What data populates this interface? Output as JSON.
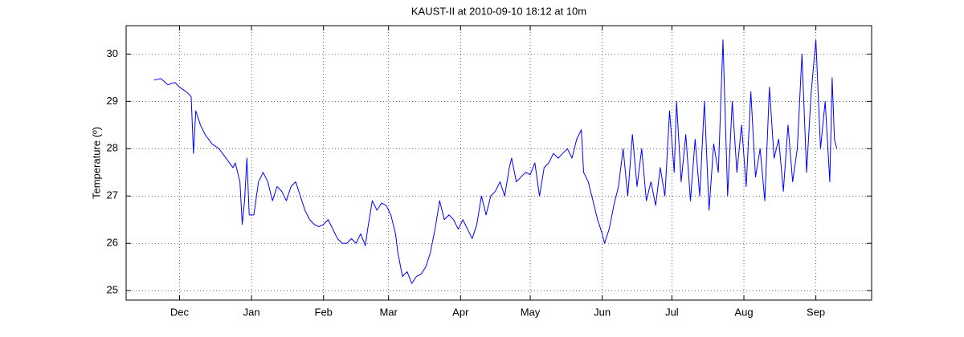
{
  "chart_data": {
    "type": "line",
    "title": "KAUST-II at 2010-09-10 18:12 at 10m",
    "ylabel": "Temperature (º)",
    "color": "#0000ff",
    "grid": true,
    "xlim": [
      -23,
      298
    ],
    "ylim": [
      24.8,
      30.6
    ],
    "yticks": [
      25,
      26,
      27,
      28,
      29,
      30
    ],
    "xticks": [
      {
        "value": 0,
        "label": "Dec"
      },
      {
        "value": 31,
        "label": "Jan"
      },
      {
        "value": 62,
        "label": "Feb"
      },
      {
        "value": 90,
        "label": "Mar"
      },
      {
        "value": 121,
        "label": "Apr"
      },
      {
        "value": 151,
        "label": "May"
      },
      {
        "value": 182,
        "label": "Jun"
      },
      {
        "value": 212,
        "label": "Jul"
      },
      {
        "value": 243,
        "label": "Aug"
      },
      {
        "value": 274,
        "label": "Sep"
      }
    ],
    "x": [
      -11,
      -8,
      -5,
      -2,
      0,
      3,
      5,
      6,
      7,
      9,
      11,
      14,
      17,
      20,
      23,
      24,
      26,
      27,
      28,
      29,
      30,
      32,
      34,
      36,
      38,
      40,
      42,
      44,
      46,
      48,
      50,
      52,
      54,
      56,
      58,
      60,
      62,
      64,
      66,
      68,
      70,
      72,
      74,
      76,
      78,
      80,
      81,
      83,
      85,
      87,
      89,
      91,
      93,
      94,
      96,
      98,
      100,
      102,
      104,
      106,
      108,
      110,
      112,
      114,
      116,
      118,
      120,
      122,
      124,
      126,
      128,
      130,
      132,
      134,
      136,
      138,
      140,
      142,
      143,
      145,
      147,
      149,
      151,
      153,
      155,
      157,
      159,
      161,
      163,
      165,
      167,
      169,
      171,
      173,
      174,
      176,
      178,
      180,
      182,
      183,
      185,
      187,
      189,
      191,
      193,
      195,
      197,
      199,
      201,
      203,
      205,
      207,
      209,
      211,
      213,
      214,
      216,
      218,
      220,
      222,
      224,
      226,
      228,
      230,
      232,
      234,
      236,
      238,
      240,
      242,
      244,
      246,
      248,
      250,
      252,
      254,
      256,
      258,
      260,
      262,
      264,
      266,
      268,
      270,
      272,
      274,
      276,
      278,
      280,
      281,
      282,
      283
    ],
    "values": [
      29.45,
      29.48,
      29.35,
      29.4,
      29.3,
      29.2,
      29.1,
      27.9,
      28.8,
      28.5,
      28.3,
      28.1,
      28.0,
      27.8,
      27.6,
      27.7,
      27.3,
      26.4,
      26.9,
      27.8,
      26.6,
      26.6,
      27.3,
      27.5,
      27.3,
      26.9,
      27.2,
      27.1,
      26.9,
      27.2,
      27.3,
      27.0,
      26.7,
      26.5,
      26.4,
      26.35,
      26.4,
      26.5,
      26.3,
      26.1,
      26.0,
      26.0,
      26.1,
      26.0,
      26.2,
      25.95,
      26.3,
      26.9,
      26.7,
      26.85,
      26.8,
      26.6,
      26.2,
      25.8,
      25.3,
      25.4,
      25.15,
      25.3,
      25.35,
      25.5,
      25.8,
      26.3,
      26.9,
      26.5,
      26.6,
      26.5,
      26.3,
      26.5,
      26.3,
      26.1,
      26.4,
      27.0,
      26.6,
      27.0,
      27.1,
      27.3,
      27.0,
      27.6,
      27.8,
      27.3,
      27.4,
      27.5,
      27.45,
      27.7,
      27.0,
      27.6,
      27.7,
      27.9,
      27.8,
      27.9,
      28.0,
      27.8,
      28.2,
      28.4,
      27.5,
      27.3,
      26.9,
      26.5,
      26.2,
      26.0,
      26.3,
      26.8,
      27.2,
      28.0,
      27.0,
      28.3,
      27.2,
      28.0,
      26.9,
      27.3,
      26.8,
      27.6,
      27.0,
      28.8,
      27.5,
      29.0,
      27.3,
      28.3,
      26.9,
      28.2,
      27.0,
      29.0,
      26.7,
      28.1,
      27.5,
      30.3,
      27.0,
      29.0,
      27.5,
      28.5,
      27.2,
      29.2,
      27.4,
      28.0,
      26.9,
      29.3,
      27.8,
      28.2,
      27.1,
      28.5,
      27.3,
      28.0,
      30.0,
      27.5,
      29.2,
      30.3,
      28.0,
      29.0,
      27.3,
      29.5,
      28.2,
      28.0
    ]
  }
}
